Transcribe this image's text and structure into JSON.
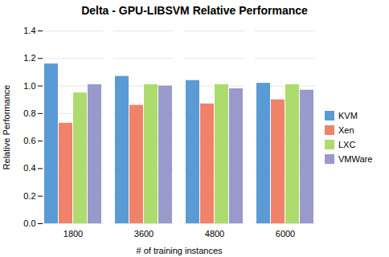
{
  "chart_data": {
    "type": "bar",
    "title": "Delta - GPU-LIBSVM Relative Performance",
    "xlabel": "# of training instances",
    "ylabel": "Relative Performance",
    "categories": [
      "1800",
      "3600",
      "4800",
      "6000"
    ],
    "series": [
      {
        "name": "KVM",
        "color": "#5B9BD5",
        "values": [
          1.16,
          1.07,
          1.04,
          1.02
        ]
      },
      {
        "name": "Xen",
        "color": "#F1826A",
        "values": [
          0.73,
          0.86,
          0.87,
          0.9
        ]
      },
      {
        "name": "LXC",
        "color": "#AEDB6E",
        "values": [
          0.95,
          1.01,
          1.01,
          1.01
        ]
      },
      {
        "name": "VMWare",
        "color": "#9999CC",
        "values": [
          1.01,
          1.0,
          0.98,
          0.97
        ]
      }
    ],
    "ylim": [
      0,
      1.4
    ],
    "yticks": [
      {
        "value": 0,
        "label": "0.0"
      },
      0.2,
      0.4,
      0.6,
      0.8,
      {
        "value": 1.0,
        "label": "1.0"
      },
      1.2,
      1.4
    ],
    "grid": true,
    "legend": "right"
  }
}
